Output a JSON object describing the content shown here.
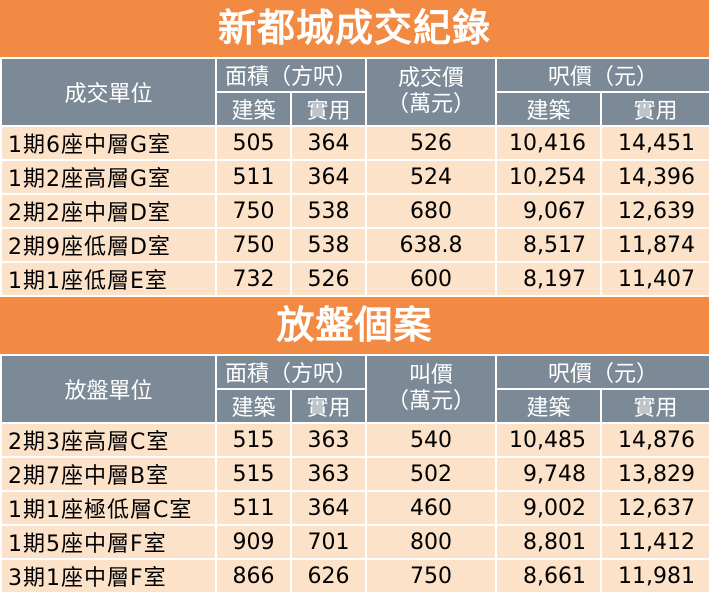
{
  "sections": [
    {
      "title": "新都城成交紀錄",
      "header": {
        "unit": "成交單位",
        "area": "面積（方呎）",
        "price_line1": "成交價",
        "price_line2": "（萬元）",
        "psf": "呎價（元）",
        "gross": "建築",
        "saleable": "實用",
        "gross2": "建築",
        "saleable2": "實用"
      },
      "rows": [
        {
          "unit": "1期6座中層G室",
          "gross_area": "505",
          "saleable_area": "364",
          "price": "526",
          "psf_gross": "10,416",
          "psf_saleable": "14,451"
        },
        {
          "unit": "1期2座高層G室",
          "gross_area": "511",
          "saleable_area": "364",
          "price": "524",
          "psf_gross": "10,254",
          "psf_saleable": "14,396"
        },
        {
          "unit": "2期2座中層D室",
          "gross_area": "750",
          "saleable_area": "538",
          "price": "680",
          "psf_gross": "9,067",
          "psf_saleable": "12,639"
        },
        {
          "unit": "2期9座低層D室",
          "gross_area": "750",
          "saleable_area": "538",
          "price": "638.8",
          "psf_gross": "8,517",
          "psf_saleable": "11,874"
        },
        {
          "unit": "1期1座低層E室",
          "gross_area": "732",
          "saleable_area": "526",
          "price": "600",
          "psf_gross": "8,197",
          "psf_saleable": "11,407"
        }
      ]
    },
    {
      "title": "放盤個案",
      "header": {
        "unit": "放盤單位",
        "area": "面積（方呎）",
        "price_line1": "叫價",
        "price_line2": "（萬元）",
        "psf": "呎價（元）",
        "gross": "建築",
        "saleable": "實用",
        "gross2": "建築",
        "saleable2": "實用"
      },
      "rows": [
        {
          "unit": "2期3座高層C室",
          "gross_area": "515",
          "saleable_area": "363",
          "price": "540",
          "psf_gross": "10,485",
          "psf_saleable": "14,876"
        },
        {
          "unit": "2期7座中層B室",
          "gross_area": "515",
          "saleable_area": "363",
          "price": "502",
          "psf_gross": "9,748",
          "psf_saleable": "13,829"
        },
        {
          "unit": "1期1座極低層C室",
          "gross_area": "511",
          "saleable_area": "364",
          "price": "460",
          "psf_gross": "9,002",
          "psf_saleable": "12,637"
        },
        {
          "unit": "1期5座中層F室",
          "gross_area": "909",
          "saleable_area": "701",
          "price": "800",
          "psf_gross": "8,801",
          "psf_saleable": "11,412"
        },
        {
          "unit": "3期1座中層F室",
          "gross_area": "866",
          "saleable_area": "626",
          "price": "750",
          "psf_gross": "8,661",
          "psf_saleable": "11,981"
        }
      ]
    }
  ]
}
